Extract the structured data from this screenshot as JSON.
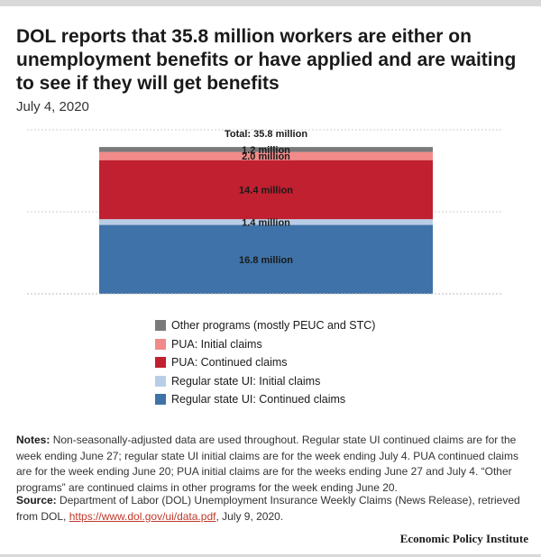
{
  "title": "DOL reports that 35.8 million workers are either on unemployment benefits or have applied and are waiting to see if they will get benefits",
  "date": "July 4, 2020",
  "chart_data": {
    "type": "bar",
    "stacked": true,
    "categories": [
      ""
    ],
    "ylim": [
      0,
      40
    ],
    "grid": true,
    "total_label": "Total: 35.8 million",
    "series": [
      {
        "name": "Regular state UI: Continued claims",
        "values": [
          16.8
        ],
        "label": "16.8 million",
        "color": "#3f72a8",
        "label_color": "#1a1a1a"
      },
      {
        "name": "Regular state UI: Initial claims",
        "values": [
          1.4
        ],
        "label": "1.4 million",
        "color": "#b9cde6",
        "label_color": "#1a1a1a"
      },
      {
        "name": "PUA: Continued claims",
        "values": [
          14.4
        ],
        "label": "14.4 million",
        "color": "#c0202f",
        "label_color": "#1a1a1a"
      },
      {
        "name": "PUA: Initial claims",
        "values": [
          2.0
        ],
        "label": "2.0 million",
        "color": "#f28a8a",
        "label_color": "#1a1a1a"
      },
      {
        "name": "Other programs (mostly PEUC and STC)",
        "values": [
          1.2
        ],
        "label": "1.2 million",
        "color": "#7a7a7a",
        "label_color": "#1a1a1a"
      }
    ]
  },
  "notes": {
    "label": "Notes:",
    "text": "Non-seasonally-adjusted data are used throughout. Regular state UI continued claims are for the week ending June 27; regular state UI initial claims are for the week ending July 4. PUA continued claims are for the week ending June 20; PUA initial claims are for the weeks ending June 27 and July 4. “Other programs” are continued claims in other programs for the week ending June 20."
  },
  "source": {
    "label": "Source:",
    "text_before": "Department of Labor (DOL) Unemployment Insurance Weekly Claims (News Release), retrieved from DOL, ",
    "link": "https://www.dol.gov/ui/data.pdf",
    "text_after": ", July 9, 2020."
  },
  "brand": "Economic Policy Institute"
}
